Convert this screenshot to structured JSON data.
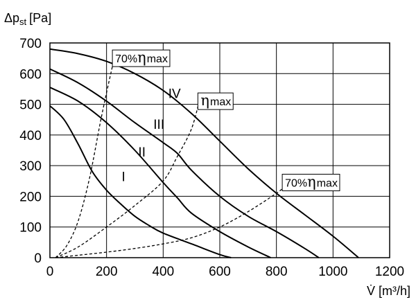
{
  "chart_data": {
    "type": "line",
    "ylabel": "Δp",
    "ylabel_sub": "st",
    "ylabel_unit": "[Pa]",
    "xlabel": "V̇ [m³/h]",
    "xlim": [
      0,
      1200
    ],
    "ylim": [
      0,
      700
    ],
    "x_ticks": [
      0,
      200,
      400,
      600,
      800,
      1000,
      1200
    ],
    "y_ticks": [
      0,
      100,
      200,
      300,
      400,
      500,
      600,
      700
    ],
    "x_tick_labels": [
      "0",
      "200",
      "400",
      "600",
      "800",
      "1000",
      "1200"
    ],
    "y_tick_labels": [
      "0",
      "100",
      "200",
      "300",
      "400",
      "500",
      "600",
      "700"
    ],
    "grid": true,
    "series": [
      {
        "name": "I",
        "style": "solid",
        "x": [
          0,
          50,
          100,
          150,
          200,
          250,
          300,
          350,
          400,
          500,
          600,
          640
        ],
        "y": [
          495,
          450,
          370,
          280,
          220,
          175,
          135,
          105,
          80,
          45,
          10,
          0
        ]
      },
      {
        "name": "II",
        "style": "solid",
        "x": [
          0,
          100,
          200,
          300,
          400,
          450,
          500,
          600,
          700,
          780
        ],
        "y": [
          555,
          510,
          440,
          350,
          245,
          195,
          145,
          85,
          35,
          0
        ]
      },
      {
        "name": "III",
        "style": "solid",
        "x": [
          0,
          100,
          200,
          300,
          400,
          450,
          500,
          600,
          700,
          800,
          900,
          950
        ],
        "y": [
          615,
          570,
          510,
          440,
          375,
          340,
          285,
          200,
          135,
          85,
          30,
          0
        ]
      },
      {
        "name": "IV",
        "style": "solid",
        "x": [
          0,
          100,
          200,
          300,
          400,
          500,
          600,
          700,
          800,
          900,
          1000,
          1090
        ],
        "y": [
          680,
          665,
          640,
          600,
          545,
          470,
          380,
          290,
          210,
          140,
          70,
          0
        ]
      },
      {
        "name": "70% ηmax (left)",
        "style": "dashed",
        "x": [
          20,
          60,
          100,
          140,
          180,
          210,
          230
        ],
        "y": [
          0,
          40,
          120,
          260,
          450,
          580,
          660
        ]
      },
      {
        "name": "ηmax",
        "style": "dashed",
        "x": [
          20,
          100,
          200,
          300,
          400,
          450,
          500,
          530
        ],
        "y": [
          0,
          35,
          100,
          170,
          250,
          330,
          420,
          520
        ]
      },
      {
        "name": "70% ηmax (right)",
        "style": "dashed",
        "x": [
          20,
          100,
          200,
          300,
          400,
          500,
          600,
          700,
          800,
          840
        ],
        "y": [
          0,
          8,
          18,
          30,
          45,
          65,
          100,
          150,
          210,
          240
        ]
      }
    ],
    "curve_labels": [
      {
        "text": "I",
        "x": 260,
        "y": 250
      },
      {
        "text": "II",
        "x": 325,
        "y": 330
      },
      {
        "text": "III",
        "x": 385,
        "y": 420
      },
      {
        "text": "IV",
        "x": 440,
        "y": 520
      }
    ],
    "annotations": [
      {
        "prefix": "70%",
        "eta": "η",
        "suffix": "max",
        "x": 228,
        "y": 650
      },
      {
        "prefix": "",
        "eta": "η",
        "suffix": "max",
        "x": 530,
        "y": 510
      },
      {
        "prefix": "70%",
        "eta": "η",
        "suffix": "max",
        "x": 828,
        "y": 245
      }
    ]
  }
}
